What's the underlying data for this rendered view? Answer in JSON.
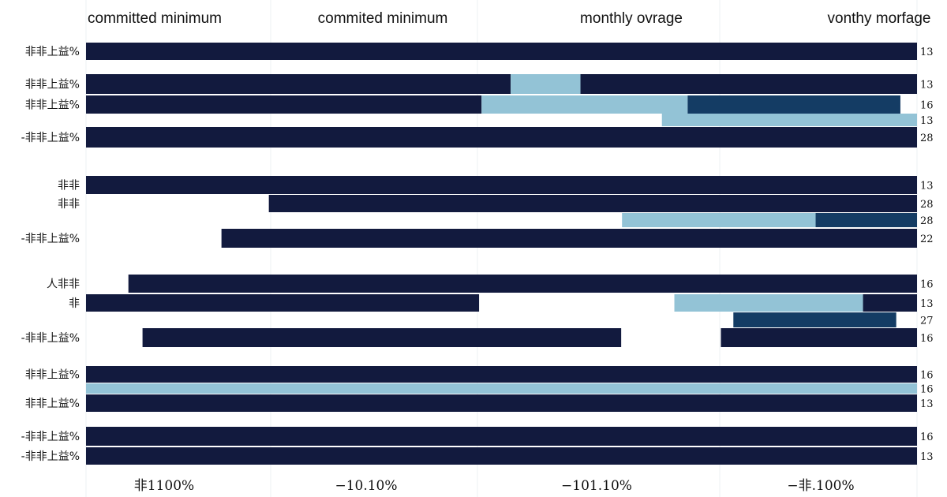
{
  "chart_data": {
    "type": "bar",
    "orientation": "horizontal",
    "stacked": true,
    "column_headers": [
      "committed minimum",
      "commited minimum",
      "monthly ovrage",
      "vonthy morfage"
    ],
    "x_tick_labels": [
      "非1100%",
      "−10.10%",
      "−101.10%",
      "−非.100%"
    ],
    "xlim": [
      0,
      100
    ],
    "grid": true,
    "colors": {
      "navy": "#121a3e",
      "light": "#93c3d6",
      "mid": "#143c64"
    },
    "rows": [
      {
        "label": "非非上益%",
        "value_label": "13",
        "segments": [
          {
            "start": 0,
            "end": 100,
            "color": "navy"
          }
        ]
      },
      {
        "label": "非非上益%",
        "value_label": "13",
        "segments": [
          {
            "start": 0,
            "end": 51.1,
            "color": "navy"
          },
          {
            "start": 51.1,
            "end": 59.5,
            "color": "light"
          },
          {
            "start": 59.5,
            "end": 100,
            "color": "navy"
          }
        ]
      },
      {
        "label": "非非上益%",
        "value_label": "16",
        "segments": [
          {
            "start": 0,
            "end": 47.6,
            "color": "navy"
          },
          {
            "start": 47.6,
            "end": 72.4,
            "color": "light"
          },
          {
            "start": 72.4,
            "end": 98.0,
            "color": "mid"
          }
        ]
      },
      {
        "label": "",
        "value_label": "13",
        "segments": [
          {
            "start": 69.3,
            "end": 100,
            "color": "light"
          }
        ]
      },
      {
        "label": "-非非上益%",
        "value_label": "28",
        "segments": [
          {
            "start": 0,
            "end": 100,
            "color": "navy"
          }
        ]
      },
      {
        "label": "非非",
        "value_label": "13",
        "segments": [
          {
            "start": 0,
            "end": 100,
            "color": "navy"
          }
        ]
      },
      {
        "label": "非非",
        "value_label": "28",
        "segments": [
          {
            "start": 22.0,
            "end": 100,
            "color": "navy"
          }
        ]
      },
      {
        "label": "",
        "value_label": "28",
        "segments": [
          {
            "start": 64.5,
            "end": 87.8,
            "color": "light"
          },
          {
            "start": 87.8,
            "end": 100,
            "color": "mid"
          }
        ]
      },
      {
        "label": "-非非上益%",
        "value_label": "22",
        "segments": [
          {
            "start": 16.3,
            "end": 100,
            "color": "navy"
          }
        ]
      },
      {
        "label": "人非非",
        "value_label": "16",
        "segments": [
          {
            "start": 5.1,
            "end": 100,
            "color": "navy"
          }
        ]
      },
      {
        "label": "非",
        "value_label": "13",
        "segments": [
          {
            "start": 0,
            "end": 47.3,
            "color": "navy"
          },
          {
            "start": 70.8,
            "end": 93.5,
            "color": "light"
          },
          {
            "start": 93.5,
            "end": 100,
            "color": "navy"
          }
        ]
      },
      {
        "label": "",
        "value_label": "27",
        "segments": [
          {
            "start": 77.9,
            "end": 97.5,
            "color": "mid"
          }
        ]
      },
      {
        "label": "-非非上益%",
        "value_label": "16",
        "segments": [
          {
            "start": 6.8,
            "end": 64.4,
            "color": "navy"
          },
          {
            "start": 76.4,
            "end": 100,
            "color": "navy"
          }
        ]
      },
      {
        "label": "非非上益%",
        "value_label": "16",
        "segments": [
          {
            "start": 0,
            "end": 100,
            "color": "navy"
          }
        ]
      },
      {
        "label": "",
        "value_label": "16",
        "segments": [
          {
            "start": 0,
            "end": 100,
            "color": "light"
          }
        ]
      },
      {
        "label": "非非上益%",
        "value_label": "13",
        "segments": [
          {
            "start": 0,
            "end": 100,
            "color": "navy"
          }
        ]
      },
      {
        "label": "-非非上益%",
        "value_label": "16",
        "segments": [
          {
            "start": 0,
            "end": 100,
            "color": "navy"
          }
        ]
      },
      {
        "label": "-非非上益%",
        "value_label": "13",
        "segments": [
          {
            "start": 0,
            "end": 100,
            "color": "navy"
          }
        ]
      }
    ]
  }
}
